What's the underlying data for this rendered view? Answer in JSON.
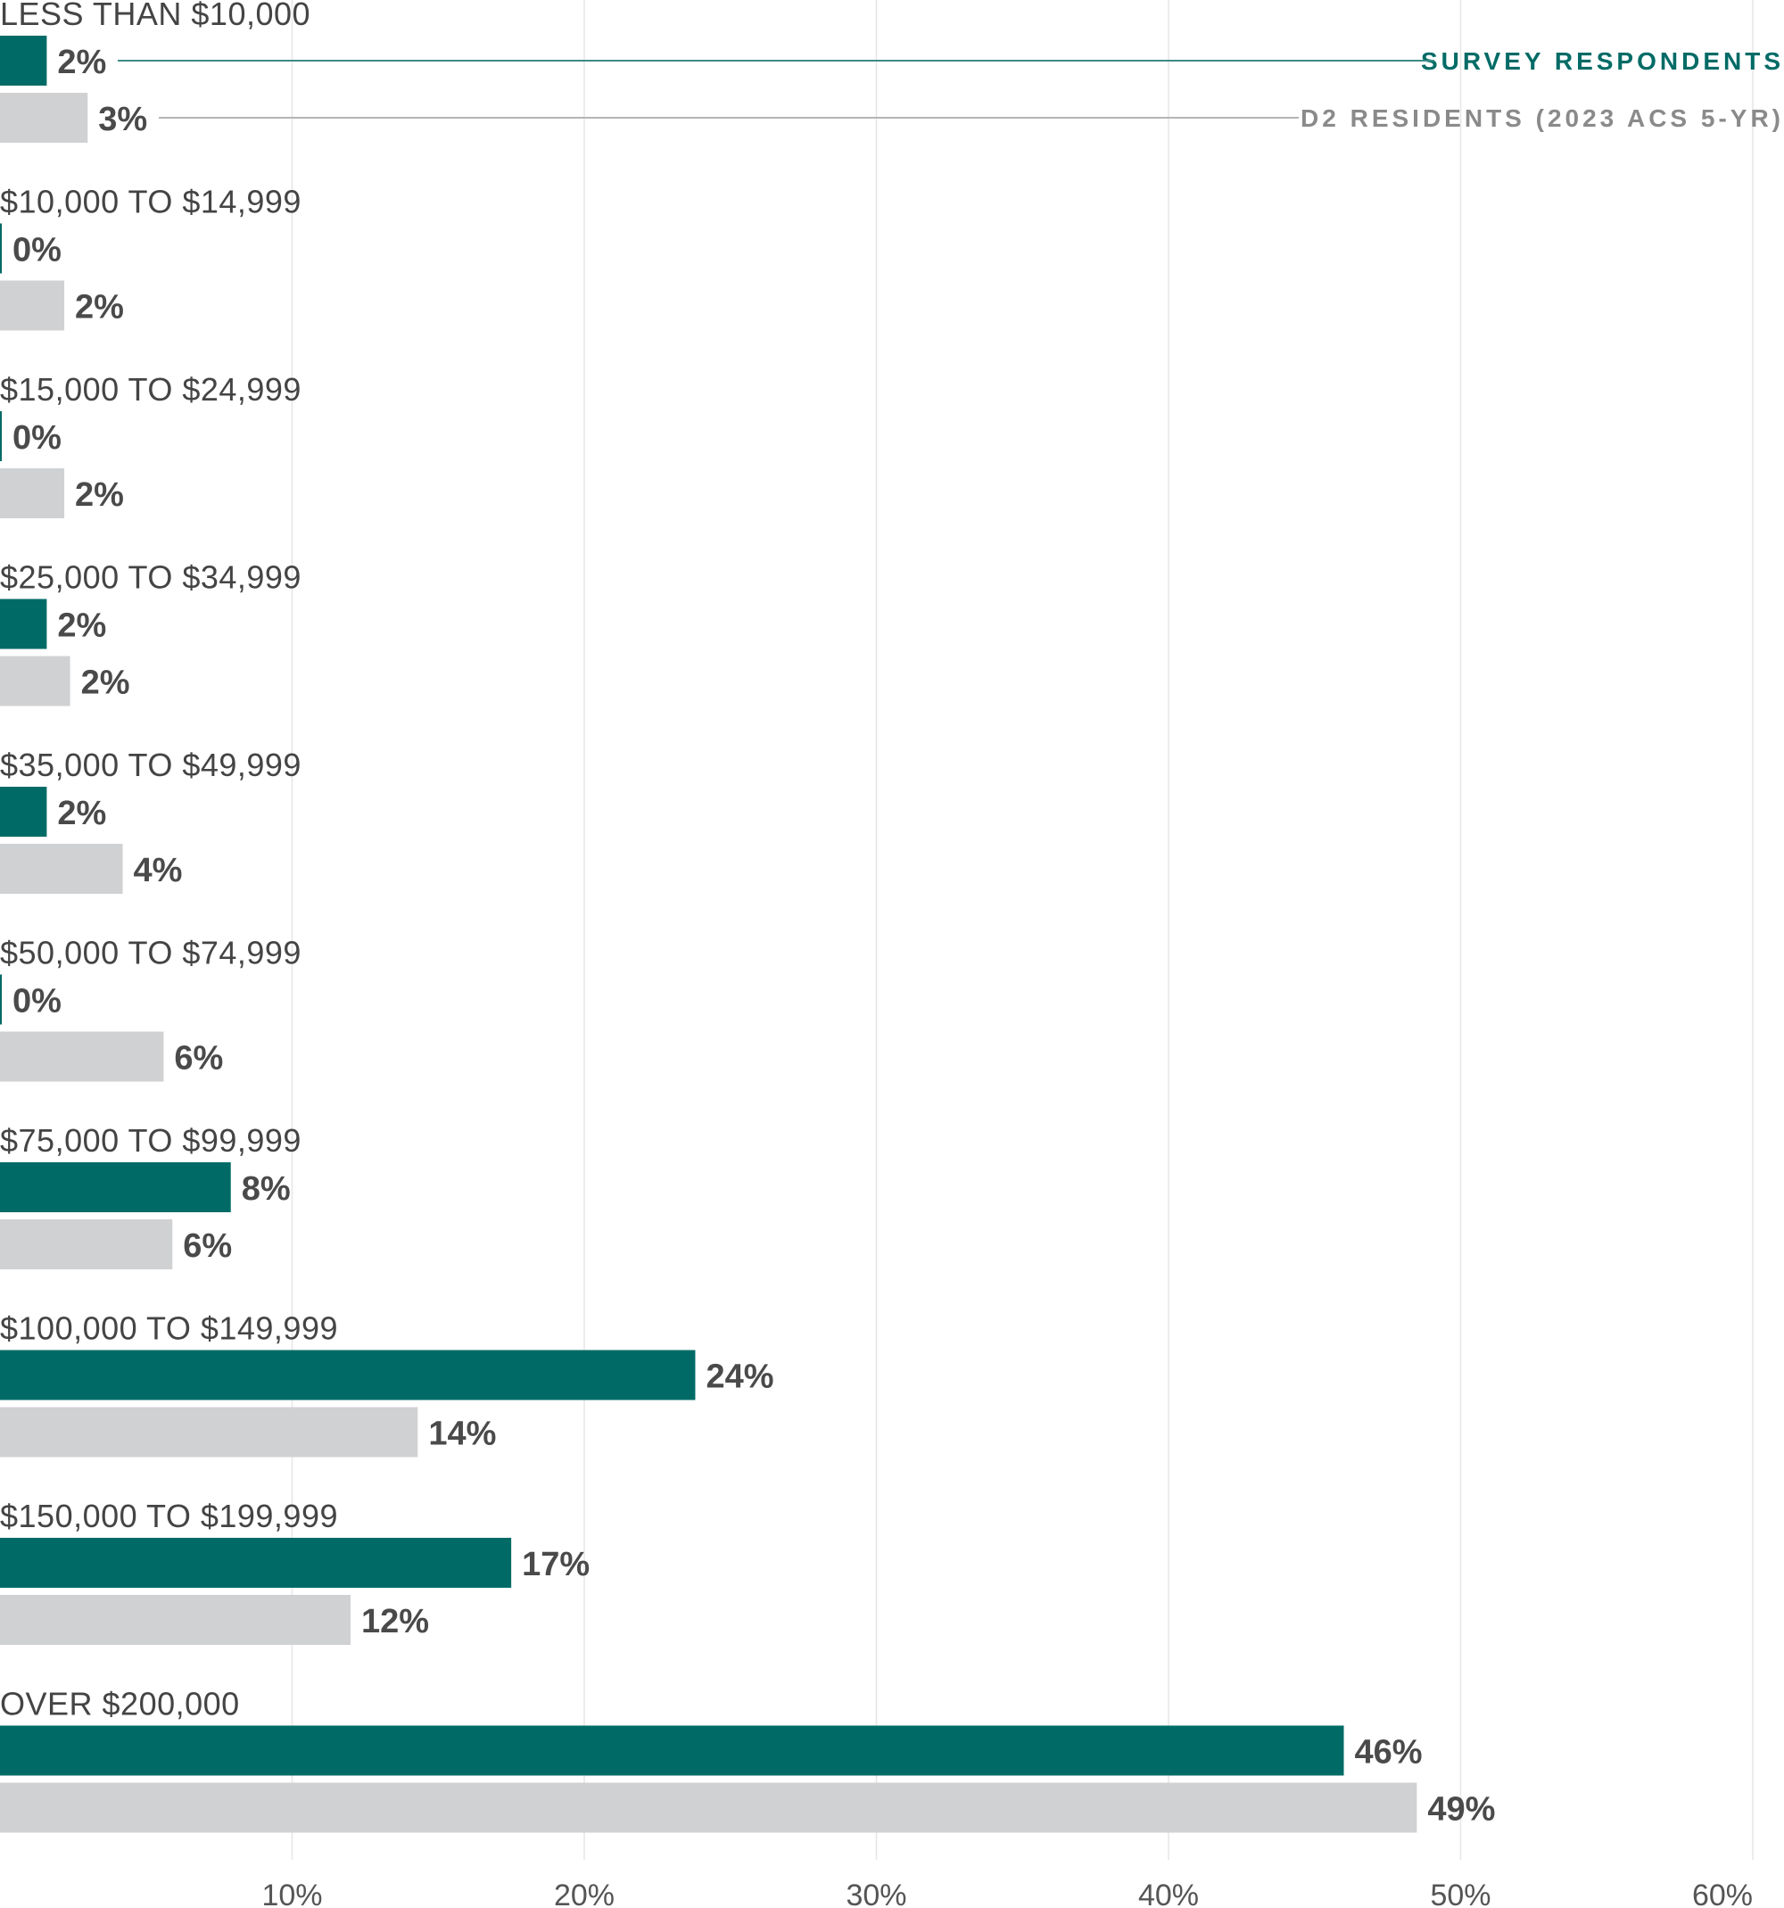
{
  "chart_data": {
    "type": "bar",
    "orientation": "horizontal",
    "categories": [
      "LESS THAN $10,000",
      "$10,000 TO $14,999",
      "$15,000 TO $24,999",
      "$25,000 TO $34,999",
      "$35,000 TO $49,999",
      "$50,000 TO $74,999",
      "$75,000 TO $99,999",
      "$100,000 TO $149,999",
      "$150,000 TO $199,999",
      "OVER $200,000"
    ],
    "series": [
      {
        "name": "SURVEY RESPONDENTS",
        "color": "#006b66",
        "values": [
          1.6,
          0,
          0,
          1.6,
          1.6,
          0,
          7.9,
          23.8,
          17.5,
          46.0
        ],
        "labels": [
          "2%",
          "0%",
          "0%",
          "2%",
          "2%",
          "0%",
          "8%",
          "24%",
          "17%",
          "46%"
        ]
      },
      {
        "name": "D2 RESIDENTS (2023 ACS 5-YR)",
        "color": "#d0d1d3",
        "values": [
          3.0,
          2.2,
          2.2,
          2.4,
          4.2,
          5.6,
          5.9,
          14.3,
          12.0,
          48.5
        ],
        "labels": [
          "3%",
          "2%",
          "2%",
          "2%",
          "4%",
          "6%",
          "6%",
          "14%",
          "12%",
          "49%"
        ]
      }
    ],
    "xlim": [
      0,
      60
    ],
    "x_ticks": [
      10,
      20,
      30,
      40,
      50,
      60
    ],
    "x_tick_labels": [
      "10%",
      "20%",
      "30%",
      "40%",
      "50%",
      "60%"
    ],
    "grid": true,
    "legend": "inline, top-right"
  }
}
